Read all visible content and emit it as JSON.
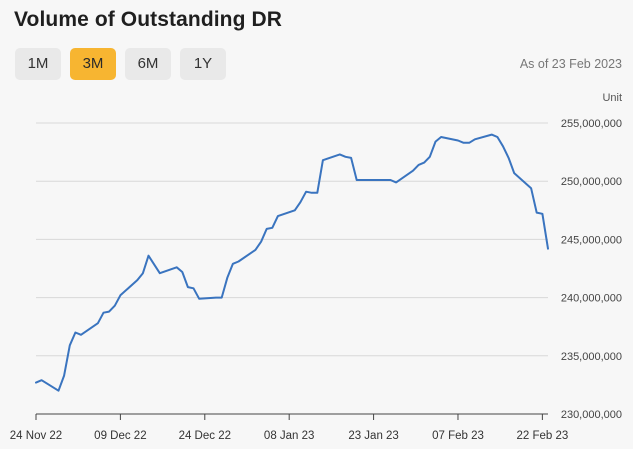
{
  "header": {
    "title": "Volume of Outstanding DR",
    "as_of": "As of 23 Feb 2023"
  },
  "range_tabs": [
    {
      "label": "1M",
      "active": false
    },
    {
      "label": "3M",
      "active": true
    },
    {
      "label": "6M",
      "active": false
    },
    {
      "label": "1Y",
      "active": false
    }
  ],
  "colors": {
    "line": "#3a74bf",
    "active_tab": "#f7b531",
    "grid": "#d8d8d8"
  },
  "chart_data": {
    "type": "line",
    "title": "Volume of Outstanding DR",
    "unit_label": "Unit",
    "ylim": [
      230000000,
      255000000
    ],
    "y_ticks": [
      {
        "value": 230000000,
        "label": "230,000,000"
      },
      {
        "value": 235000000,
        "label": "235,000,000"
      },
      {
        "value": 240000000,
        "label": "240,000,000"
      },
      {
        "value": 245000000,
        "label": "245,000,000"
      },
      {
        "value": 250000000,
        "label": "250,000,000"
      },
      {
        "value": 255000000,
        "label": "255,000,000"
      }
    ],
    "x_range": [
      "2022-11-24",
      "2023-02-23"
    ],
    "x_ticks": [
      {
        "date": "2022-11-24",
        "label": "24 Nov 22"
      },
      {
        "date": "2022-12-09",
        "label": "09 Dec 22"
      },
      {
        "date": "2022-12-24",
        "label": "24 Dec 22"
      },
      {
        "date": "2023-01-08",
        "label": "08 Jan 23"
      },
      {
        "date": "2023-01-23",
        "label": "23 Jan 23"
      },
      {
        "date": "2023-02-07",
        "label": "07 Feb 23"
      },
      {
        "date": "2023-02-22",
        "label": "22 Feb 23"
      }
    ],
    "grid": true,
    "series": [
      {
        "points": [
          [
            "2022-11-24",
            232700000
          ],
          [
            "2022-11-25",
            232900000
          ],
          [
            "2022-11-28",
            232000000
          ],
          [
            "2022-11-29",
            233300000
          ],
          [
            "2022-11-30",
            235900000
          ],
          [
            "2022-12-01",
            237000000
          ],
          [
            "2022-12-02",
            236800000
          ],
          [
            "2022-12-05",
            237800000
          ],
          [
            "2022-12-06",
            238700000
          ],
          [
            "2022-12-07",
            238800000
          ],
          [
            "2022-12-08",
            239300000
          ],
          [
            "2022-12-09",
            240200000
          ],
          [
            "2022-12-12",
            241500000
          ],
          [
            "2022-12-13",
            242100000
          ],
          [
            "2022-12-14",
            243600000
          ],
          [
            "2022-12-16",
            242100000
          ],
          [
            "2022-12-19",
            242600000
          ],
          [
            "2022-12-20",
            242200000
          ],
          [
            "2022-12-21",
            240900000
          ],
          [
            "2022-12-22",
            240800000
          ],
          [
            "2022-12-23",
            239900000
          ],
          [
            "2022-12-26",
            240000000
          ],
          [
            "2022-12-27",
            240000000
          ],
          [
            "2022-12-28",
            241700000
          ],
          [
            "2022-12-29",
            242900000
          ],
          [
            "2022-12-30",
            243100000
          ],
          [
            "2023-01-02",
            244100000
          ],
          [
            "2023-01-03",
            244800000
          ],
          [
            "2023-01-04",
            245900000
          ],
          [
            "2023-01-05",
            246000000
          ],
          [
            "2023-01-06",
            247000000
          ],
          [
            "2023-01-09",
            247500000
          ],
          [
            "2023-01-10",
            248200000
          ],
          [
            "2023-01-11",
            249100000
          ],
          [
            "2023-01-12",
            249000000
          ],
          [
            "2023-01-13",
            249000000
          ],
          [
            "2023-01-14",
            251800000
          ],
          [
            "2023-01-17",
            252300000
          ],
          [
            "2023-01-18",
            252100000
          ],
          [
            "2023-01-19",
            252000000
          ],
          [
            "2023-01-20",
            250100000
          ],
          [
            "2023-01-26",
            250100000
          ],
          [
            "2023-01-27",
            249900000
          ],
          [
            "2023-01-30",
            250900000
          ],
          [
            "2023-01-31",
            251400000
          ],
          [
            "2023-02-01",
            251600000
          ],
          [
            "2023-02-02",
            252100000
          ],
          [
            "2023-02-03",
            253400000
          ],
          [
            "2023-02-04",
            253800000
          ],
          [
            "2023-02-07",
            253500000
          ],
          [
            "2023-02-08",
            253300000
          ],
          [
            "2023-02-09",
            253300000
          ],
          [
            "2023-02-10",
            253600000
          ],
          [
            "2023-02-13",
            254000000
          ],
          [
            "2023-02-14",
            253800000
          ],
          [
            "2023-02-15",
            253000000
          ],
          [
            "2023-02-16",
            252000000
          ],
          [
            "2023-02-17",
            250700000
          ],
          [
            "2023-02-20",
            249400000
          ],
          [
            "2023-02-21",
            247300000
          ],
          [
            "2023-02-22",
            247200000
          ],
          [
            "2023-02-23",
            244200000
          ]
        ]
      }
    ]
  }
}
